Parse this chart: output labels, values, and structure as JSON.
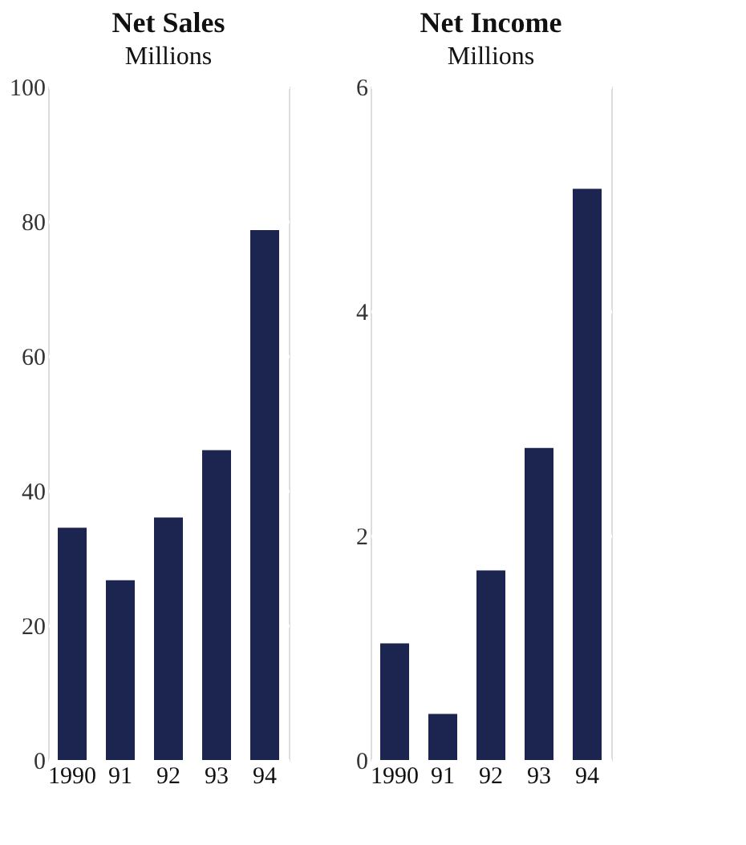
{
  "chart_data": [
    {
      "type": "bar",
      "title": "Net Sales",
      "subtitle": "Millions",
      "categories": [
        "1990",
        "91",
        "92",
        "93",
        "94"
      ],
      "values": [
        34.5,
        26.7,
        36,
        46,
        78.7
      ],
      "color": "#1c2450",
      "ylim": [
        0,
        100
      ],
      "yticks": [
        0,
        20,
        40,
        60,
        80,
        100
      ],
      "grid": "y"
    },
    {
      "type": "bar",
      "title": "Net Income",
      "subtitle": "Millions",
      "categories": [
        "1990",
        "91",
        "92",
        "93",
        "94"
      ],
      "values": [
        1.04,
        0.41,
        1.69,
        2.78,
        5.09
      ],
      "color": "#1c2450",
      "ylim": [
        0,
        6
      ],
      "yticks": [
        0,
        2,
        4,
        6
      ],
      "grid": "y"
    }
  ]
}
